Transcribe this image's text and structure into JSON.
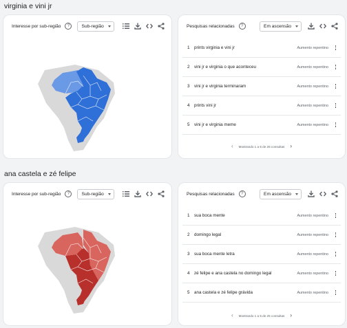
{
  "sections": [
    {
      "title": "virginia e vini jr",
      "map_card": {
        "title": "Interesse por sub-região",
        "dropdown": "Sub-região",
        "map_color": "#2f6fd8",
        "map_color_light": "#6a99e6",
        "icons": [
          "list-icon",
          "download-icon",
          "embed-icon",
          "share-icon"
        ]
      },
      "related_card": {
        "title": "Pesquisas relacionadas",
        "dropdown": "Em ascensão",
        "rows": [
          {
            "num": "1",
            "text": "prints virginia e vini jr",
            "badge": "Aumento repentino"
          },
          {
            "num": "2",
            "text": "vini jr e virginia o que aconteceu",
            "badge": "Aumento repentino"
          },
          {
            "num": "3",
            "text": "vini jr e virginia terminaram",
            "badge": "Aumento repentino"
          },
          {
            "num": "4",
            "text": "prints vini jr",
            "badge": "Aumento repentino"
          },
          {
            "num": "5",
            "text": "vini jr e virginia meme",
            "badge": "Aumento repentino"
          }
        ],
        "pager": "Mostrando 1 a 5 de 26 consultas"
      }
    },
    {
      "title": "ana castela e zé felipe",
      "map_card": {
        "title": "Interesse por sub-região",
        "dropdown": "Sub-região",
        "map_color": "#b8302b",
        "map_color_light": "#d9655f",
        "icons": [
          "list-icon",
          "download-icon",
          "embed-icon",
          "share-icon"
        ]
      },
      "related_card": {
        "title": "Pesquisas relacionadas",
        "dropdown": "Em ascensão",
        "rows": [
          {
            "num": "1",
            "text": "sua boca mente",
            "badge": "Aumento repentino"
          },
          {
            "num": "2",
            "text": "domingo legal",
            "badge": "Aumento repentino"
          },
          {
            "num": "3",
            "text": "sua boca mente letra",
            "badge": "Aumento repentino"
          },
          {
            "num": "4",
            "text": "zé felipe e ana castela no domingo legal",
            "badge": "Aumento repentino"
          },
          {
            "num": "5",
            "text": "ana castela e zé felipe grávida",
            "badge": "Aumento repentino"
          }
        ],
        "pager": "Mostrando 1 a 5 de 25 consultas"
      }
    }
  ]
}
